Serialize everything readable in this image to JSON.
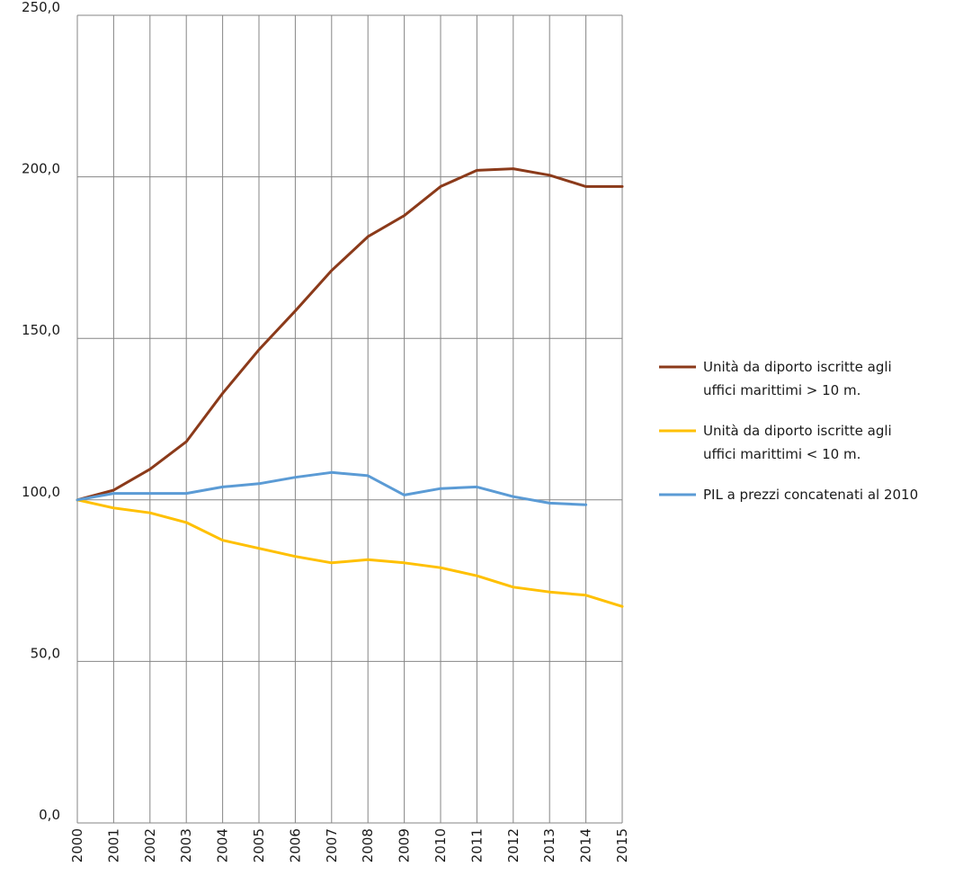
{
  "chart_data": {
    "type": "line",
    "x": [
      "2000",
      "2001",
      "2002",
      "2003",
      "2004",
      "2005",
      "2006",
      "2007",
      "2008",
      "2009",
      "2010",
      "2011",
      "2012",
      "2013",
      "2014",
      "2015"
    ],
    "ylim": [
      0,
      250
    ],
    "yticks": [
      "0,0",
      "50,0",
      "100,0",
      "150,0",
      "200,0",
      "250,0"
    ],
    "grid": true,
    "legend_position": "right",
    "series": [
      {
        "name_lines": [
          "Unità da diporto iscritte agli",
          "uffici marittimi > 10 m."
        ],
        "color": "#8B3A1A",
        "values": [
          100,
          103,
          109.5,
          118,
          133,
          146.5,
          158.5,
          171,
          181.5,
          188,
          197,
          202,
          202.5,
          200.5,
          197,
          197
        ]
      },
      {
        "name_lines": [
          "Unità da diporto iscritte agli",
          "uffici marittimi < 10 m."
        ],
        "color": "#FFC000",
        "values": [
          100,
          97.5,
          96,
          93,
          87.5,
          85,
          82.5,
          80.5,
          81.5,
          80.5,
          79,
          76.5,
          73,
          71.5,
          70.5,
          67
        ]
      },
      {
        "name_lines": [
          "PIL a prezzi concatenati al 2010"
        ],
        "color": "#5B9BD5",
        "values": [
          100,
          102,
          102,
          102,
          104,
          105,
          107,
          108.5,
          107.5,
          101.5,
          103.5,
          104,
          101,
          99,
          98.5,
          null
        ]
      }
    ]
  }
}
